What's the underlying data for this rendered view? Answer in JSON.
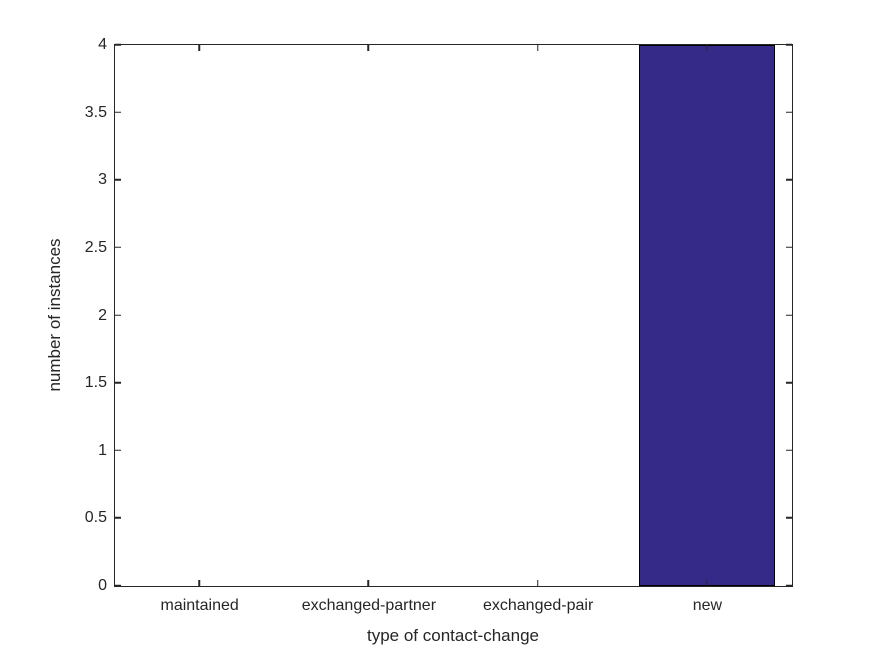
{
  "chart_data": {
    "type": "bar",
    "categories": [
      "maintained",
      "exchanged-partner",
      "exchanged-pair",
      "new"
    ],
    "values": [
      0,
      0,
      0,
      4
    ],
    "title": "",
    "xlabel": "type of contact-change",
    "ylabel": "number of instances",
    "ylim": [
      0,
      4
    ],
    "yticks": [
      0,
      0.5,
      1,
      1.5,
      2,
      2.5,
      3,
      3.5,
      4
    ],
    "ytick_labels": [
      "0",
      "0.5",
      "1",
      "1.5",
      "2",
      "2.5",
      "3",
      "3.5",
      "4"
    ],
    "bar_width_fraction": 0.8,
    "bar_color": "#352a87",
    "bar_edge_color": "#000000",
    "axis_color": "#262626",
    "text_color": "#262626",
    "grid": false,
    "legend": null,
    "box": true,
    "tick_direction": "in"
  }
}
